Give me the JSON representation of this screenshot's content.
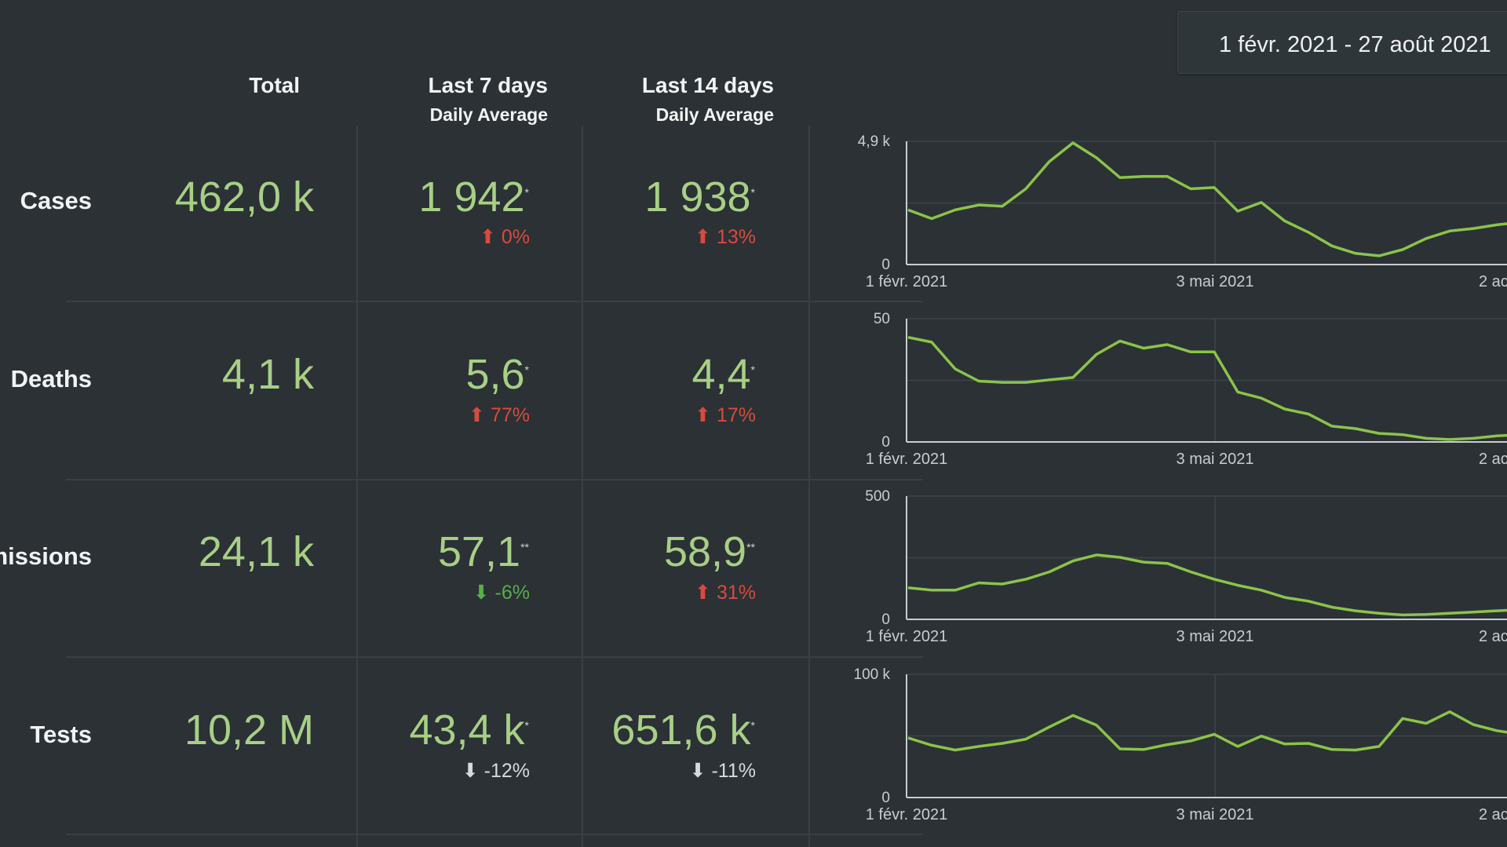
{
  "date_range": "1 févr. 2021 - 27 août 2021",
  "columns": {
    "total": "Total",
    "last7": "Last 7 days",
    "last7_sub": "Daily Average",
    "last14": "Last 14 days",
    "last14_sub": "Daily Average"
  },
  "rows": [
    {
      "label": "Cases",
      "total": "462,0 k",
      "avg7": "1 942",
      "avg7_mark": "*",
      "delta7": "0%",
      "avg14": "1 938",
      "avg14_mark": "*",
      "delta14": "13%"
    },
    {
      "label": "Deaths",
      "total": "4,1 k",
      "avg7": "5,6",
      "avg7_mark": "*",
      "delta7": "77%",
      "avg14": "4,4",
      "avg14_mark": "*",
      "delta14": "17%"
    },
    {
      "label": "missions",
      "total": "24,1 k",
      "avg7": "57,1",
      "avg7_mark": "**",
      "delta7": "-6%",
      "avg14": "58,9",
      "avg14_mark": "**",
      "delta14": "31%"
    },
    {
      "label": "Tests",
      "total": "10,2 M",
      "avg7": "43,4 k",
      "avg7_mark": "*",
      "delta7": "-12%",
      "avg14": "651,6 k",
      "avg14_mark": "*",
      "delta14": "-11%"
    }
  ],
  "colors": {
    "background": "#2b3135",
    "value_green": "#a8cf86",
    "line_green": "#8bc34a",
    "up_red": "#d84a3e",
    "down_green": "#5aad4c"
  },
  "icons": {
    "up": "arrow-up-icon",
    "down": "arrow-down-icon"
  },
  "chart_data": [
    {
      "type": "line",
      "name": "Cases",
      "ylim": [
        0,
        4900
      ],
      "ytick_labels": [
        "0",
        "4,9 k"
      ],
      "x_tick_labels": [
        "1 févr. 2021",
        "3 mai 2021",
        "2 ac"
      ],
      "x": [
        1,
        2,
        3,
        4,
        5,
        6,
        7,
        8,
        9,
        10,
        11,
        12,
        13,
        14,
        15,
        16,
        17,
        18,
        19,
        20,
        21,
        22,
        23,
        24,
        25,
        26,
        27,
        28,
        29,
        30
      ],
      "values": [
        2200,
        1850,
        2200,
        2400,
        2350,
        3050,
        4150,
        4900,
        4300,
        3500,
        3550,
        3550,
        3050,
        3100,
        2150,
        2500,
        1750,
        1300,
        750,
        450,
        350,
        600,
        1050,
        1350,
        1450,
        1600,
        1700,
        1800,
        1850,
        1900
      ]
    },
    {
      "type": "line",
      "name": "Deaths",
      "ylim": [
        0,
        50
      ],
      "ytick_labels": [
        "0",
        "50"
      ],
      "x_tick_labels": [
        "1 févr. 2021",
        "3 mai 2021",
        "2 ac"
      ],
      "x": [
        1,
        2,
        3,
        4,
        5,
        6,
        7,
        8,
        9,
        10,
        11,
        12,
        13,
        14,
        15,
        16,
        17,
        18,
        19,
        20,
        21,
        22,
        23,
        24,
        25,
        26,
        27,
        28,
        29,
        30
      ],
      "values": [
        43,
        41,
        30,
        25,
        24.5,
        24.5,
        25.5,
        26.5,
        36,
        41.5,
        38.5,
        40,
        37,
        37,
        20.5,
        18,
        13.5,
        11.5,
        6.5,
        5.5,
        3.5,
        3,
        1.5,
        1,
        1.5,
        2.5,
        3,
        3.5,
        4,
        4.5
      ]
    },
    {
      "type": "line",
      "name": "missions",
      "ylim": [
        0,
        500
      ],
      "ytick_labels": [
        "0",
        "500"
      ],
      "x_tick_labels": [
        "1 févr. 2021",
        "3 mai 2021",
        "2 ac"
      ],
      "x": [
        1,
        2,
        3,
        4,
        5,
        6,
        7,
        8,
        9,
        10,
        11,
        12,
        13,
        14,
        15,
        16,
        17,
        18,
        19,
        20,
        21,
        22,
        23,
        24,
        25,
        26,
        27,
        28,
        29,
        30
      ],
      "values": [
        130,
        120,
        120,
        150,
        145,
        165,
        195,
        240,
        265,
        255,
        235,
        230,
        195,
        165,
        140,
        120,
        90,
        75,
        50,
        35,
        25,
        18,
        20,
        25,
        30,
        35,
        40,
        45,
        48,
        50
      ]
    },
    {
      "type": "line",
      "name": "Tests",
      "ylim": [
        0,
        100000
      ],
      "ytick_labels": [
        "0",
        "100 k"
      ],
      "x_tick_labels": [
        "1 févr. 2021",
        "3 mai 2021",
        "2 ac"
      ],
      "x": [
        1,
        2,
        3,
        4,
        5,
        6,
        7,
        8,
        9,
        10,
        11,
        12,
        13,
        14,
        15,
        16,
        17,
        18,
        19,
        20,
        21,
        22,
        23,
        24,
        25,
        26,
        27,
        28,
        29,
        30
      ],
      "values": [
        49000,
        43000,
        39000,
        42000,
        44500,
        48000,
        58000,
        67500,
        59500,
        40000,
        39500,
        43500,
        46500,
        52000,
        42000,
        50500,
        44000,
        44500,
        39500,
        39000,
        42000,
        65000,
        61000,
        70500,
        60000,
        55000,
        52000,
        52000,
        53000,
        54000
      ]
    }
  ]
}
